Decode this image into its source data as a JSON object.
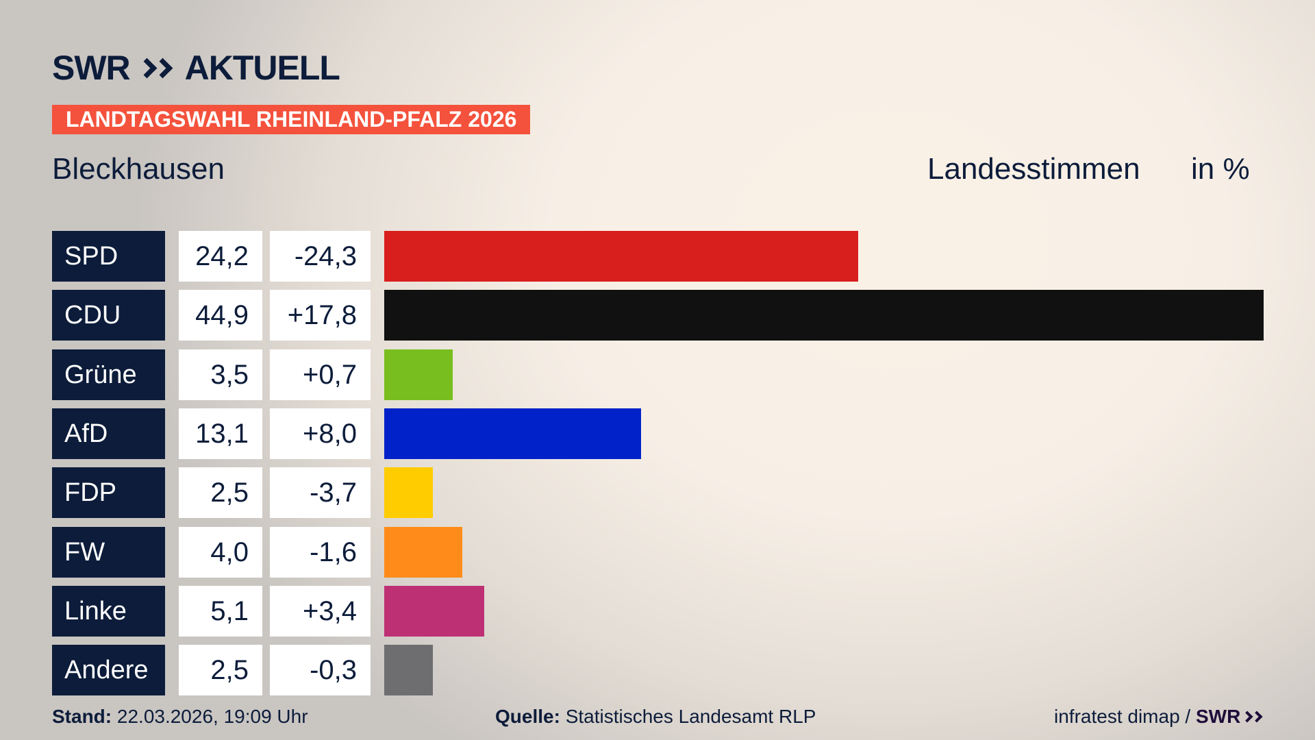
{
  "header": {
    "logo": "SWR AKTUELL",
    "banner": "LANDTAGSWAHL RHEINLAND-PFALZ 2026",
    "place": "Bleckhausen",
    "vote_type": "Landesstimmen",
    "unit": "in %"
  },
  "chart_data": {
    "type": "bar",
    "orientation": "horizontal",
    "categories": [
      "SPD",
      "CDU",
      "Grüne",
      "AfD",
      "FDP",
      "FW",
      "Linke",
      "Andere"
    ],
    "values": [
      "24,2",
      "44,9",
      "3,5",
      "13,1",
      "2,5",
      "4,0",
      "5,1",
      "2,5"
    ],
    "numeric_values": [
      24.2,
      44.9,
      3.5,
      13.1,
      2.5,
      4.0,
      5.1,
      2.5
    ],
    "changes": [
      "-24,3",
      "+17,8",
      "+0,7",
      "+8,0",
      "-3,7",
      "-1,6",
      "+3,4",
      "-0,3"
    ],
    "colors": [
      "#d91e1e",
      "#111111",
      "#78be1e",
      "#0022c8",
      "#ffcc00",
      "#ff8c1a",
      "#be3074",
      "#6e6e70"
    ],
    "grid": false
  },
  "footer": {
    "stand_label": "Stand:",
    "stand_value": "22.03.2026, 19:09 Uhr",
    "source_label": "Quelle:",
    "source_value": "Statistisches Landesamt RLP",
    "credit": "infratest dimap /",
    "credit_logo": "SWR"
  }
}
